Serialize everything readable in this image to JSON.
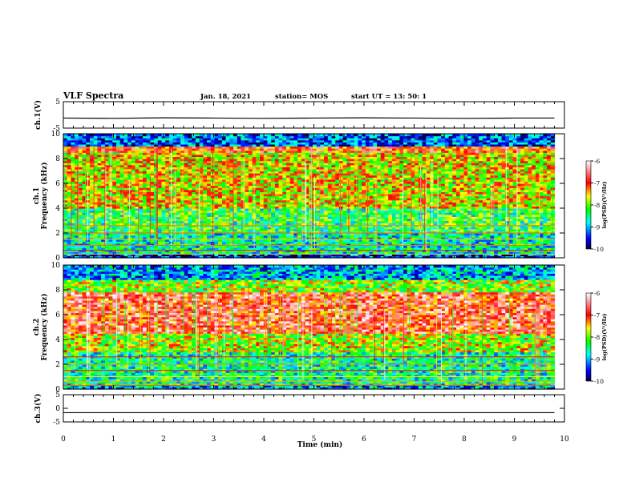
{
  "header": {
    "title": "VLF Spectra",
    "date": "Jan. 18, 2021",
    "station": "station= MOS",
    "start_time": "start UT =   13: 50: 1"
  },
  "chart_data": [
    {
      "type": "line",
      "name": "ch1-voltage",
      "ylabel": "ch.1(V)",
      "ylim": [
        -5,
        5
      ],
      "yticks": [
        "5",
        "-5"
      ],
      "x": [
        0,
        1,
        2,
        3,
        4,
        5,
        6,
        7,
        8,
        9,
        9.8
      ],
      "values": [
        -1.2,
        -1.3,
        -1.1,
        -1.2,
        -1.3,
        -1.2,
        -1.1,
        -1.2,
        -1.3,
        -1.2,
        -1.2
      ]
    },
    {
      "type": "heatmap",
      "name": "ch1-spectrogram",
      "ylabel": "ch.1\nFrequency (kHz)",
      "ylim": [
        0,
        10
      ],
      "yticks": [
        "0",
        "2",
        "4",
        "6",
        "8",
        "10"
      ],
      "colorbar": {
        "label": "log(PSD)(V²/Hz)",
        "range": [
          -10,
          -6
        ],
        "ticks": [
          "-6",
          "-7",
          "-8",
          "-9",
          "-10"
        ]
      },
      "bands": [
        {
          "from": 0,
          "to": 0.4,
          "level": -9.5
        },
        {
          "from": 0.4,
          "to": 2.0,
          "level": -8.6
        },
        {
          "from": 2.0,
          "to": 4.0,
          "level": -8.3
        },
        {
          "from": 4.0,
          "to": 8.5,
          "level": -7.6
        },
        {
          "from": 8.5,
          "to": 9.0,
          "level": -7.0
        },
        {
          "from": 9.0,
          "to": 10.0,
          "level": -9.3
        }
      ]
    },
    {
      "type": "heatmap",
      "name": "ch2-spectrogram",
      "ylabel": "ch.2\nFrequency (kHz)",
      "ylim": [
        0,
        10
      ],
      "yticks": [
        "0",
        "2",
        "4",
        "6",
        "8",
        "10"
      ],
      "colorbar": {
        "label": "log(PSD)(V²/Hz)",
        "range": [
          -10,
          -6
        ],
        "ticks": [
          "-6",
          "-7",
          "-8",
          "-9",
          "-10"
        ]
      },
      "bands": [
        {
          "from": 0,
          "to": 0.4,
          "level": -9.0
        },
        {
          "from": 0.4,
          "to": 3.0,
          "level": -8.5
        },
        {
          "from": 3.0,
          "to": 4.5,
          "level": -7.8
        },
        {
          "from": 4.5,
          "to": 7.8,
          "level": -6.8
        },
        {
          "from": 7.8,
          "to": 8.8,
          "level": -7.9
        },
        {
          "from": 8.8,
          "to": 10.0,
          "level": -9.0
        }
      ]
    },
    {
      "type": "line",
      "name": "ch3-voltage",
      "ylabel": "ch.3(V)",
      "ylim": [
        -5,
        5
      ],
      "yticks": [
        "5",
        "0",
        "-5"
      ],
      "x": [
        0,
        1,
        2,
        3,
        4,
        5,
        6,
        7,
        8,
        9,
        9.8
      ],
      "values": [
        -1.6,
        -1.6,
        -1.6,
        -1.6,
        -1.6,
        -1.6,
        -1.6,
        -1.6,
        -1.6,
        -1.6,
        -1.6
      ]
    }
  ],
  "xaxis": {
    "label": "Time (min)",
    "ticks": [
      "0",
      "1",
      "2",
      "3",
      "4",
      "5",
      "6",
      "7",
      "8",
      "9",
      "10"
    ],
    "range": [
      0,
      10
    ],
    "data_end": 9.8
  }
}
